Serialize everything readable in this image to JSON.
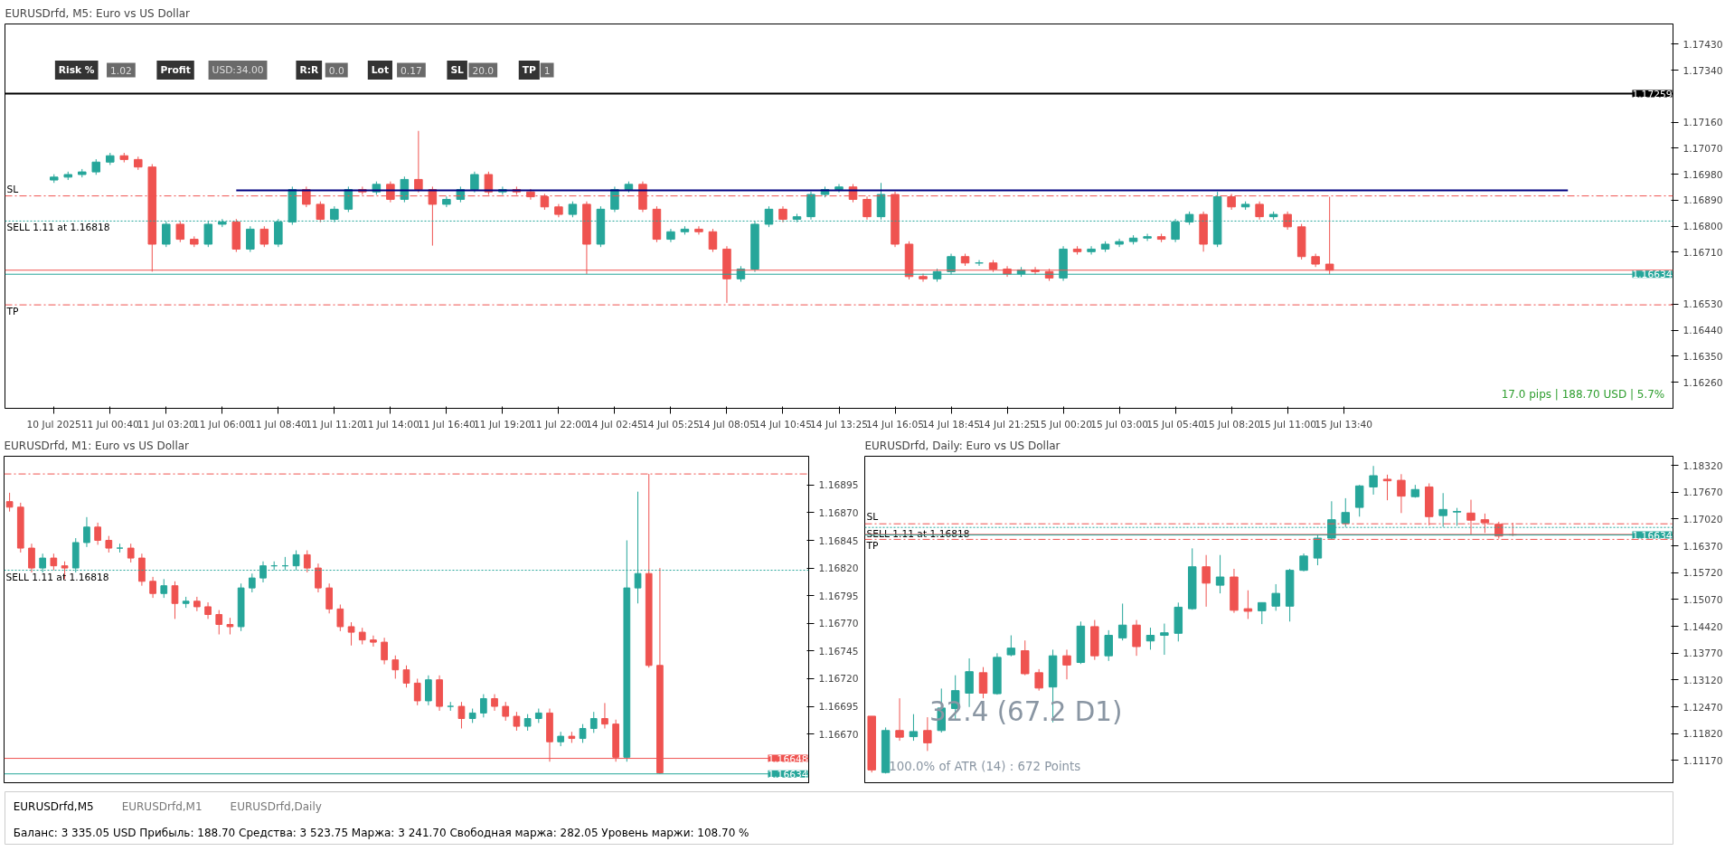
{
  "chart_data": [
    {
      "type": "candlestick",
      "title": "EURUSDrfd, M5:  Euro vs US Dollar",
      "categories": [
        null,
        null,
        null,
        "10 Jul 2025",
        null,
        null,
        null,
        "11 Jul 00:40",
        null,
        null,
        null,
        "11 Jul 03:20",
        null,
        null,
        null,
        "11 Jul 06:00",
        null,
        null,
        null,
        "11 Jul 08:40",
        null,
        null,
        null,
        "11 Jul 11:20",
        null,
        null,
        null,
        "11 Jul 14:00",
        null,
        null,
        null,
        "11 Jul 16:40",
        null,
        null,
        null,
        "11 Jul 19:20",
        null,
        null,
        null,
        "11 Jul 22:00",
        null,
        null,
        null,
        "14 Jul 02:45",
        null,
        null,
        null,
        "14 Jul 05:25",
        null,
        null,
        null,
        "14 Jul 08:05",
        null,
        null,
        null,
        "14 Jul 10:45",
        null,
        null,
        null,
        "14 Jul 13:25",
        null,
        null,
        null,
        "14 Jul 16:05",
        null,
        null,
        null,
        "14 Jul 18:45",
        null,
        null,
        null,
        "14 Jul 21:25",
        null,
        null,
        null,
        "15 Jul 00:20",
        null,
        null,
        null,
        "15 Jul 03:00",
        null,
        null,
        null,
        "15 Jul 05:40",
        null,
        null,
        null,
        "15 Jul 08:20",
        null,
        null,
        null,
        "15 Jul 11:00",
        null,
        null,
        null,
        "15 Jul 13:40",
        null,
        null,
        null,
        null,
        null,
        null,
        null,
        null,
        null,
        null,
        null,
        null,
        null,
        null,
        null,
        null,
        null,
        null,
        null,
        null,
        null,
        null,
        null
      ],
      "ohlc": [
        null,
        null,
        null,
        [
          1.1696,
          1.1698,
          1.1695,
          1.1697
        ],
        [
          1.1697,
          1.16989,
          1.1696,
          1.16979
        ],
        [
          1.16979,
          1.16998,
          1.16969,
          1.16988
        ],
        [
          1.16988,
          1.17032,
          1.16978,
          1.17022
        ],
        [
          1.17022,
          1.17054,
          1.17012,
          1.17044
        ],
        [
          1.17044,
          1.17054,
          1.17021,
          1.17031
        ],
        [
          1.17031,
          1.17041,
          1.16995,
          1.17005
        ],
        [
          1.17005,
          1.17015,
          1.16643,
          1.16738
        ],
        [
          1.16738,
          1.16817,
          1.16728,
          1.16807
        ],
        [
          1.16807,
          1.16817,
          1.16745,
          1.16755
        ],
        [
          1.16755,
          1.16765,
          1.16728,
          1.16738
        ],
        [
          1.16738,
          1.16817,
          1.16728,
          1.16807
        ],
        [
          1.16807,
          1.16825,
          1.16797,
          1.16815
        ],
        [
          1.16815,
          1.16825,
          1.16711,
          1.16721
        ],
        [
          1.16721,
          1.168,
          1.16711,
          1.1679
        ],
        [
          1.1679,
          1.168,
          1.16728,
          1.16738
        ],
        [
          1.16738,
          1.16825,
          1.16728,
          1.16815
        ],
        [
          1.16815,
          1.16937,
          1.16805,
          1.16927
        ],
        [
          1.16927,
          1.16937,
          1.16866,
          1.16876
        ],
        [
          1.16876,
          1.16886,
          1.16814,
          1.16824
        ],
        [
          1.16824,
          1.16869,
          1.16814,
          1.16859
        ],
        [
          1.16859,
          1.16937,
          1.16849,
          1.16927
        ],
        [
          1.16927,
          1.16937,
          1.16909,
          1.16919
        ],
        [
          1.16919,
          1.16955,
          1.16909,
          1.16945
        ],
        [
          1.16945,
          1.16955,
          1.16883,
          1.16893
        ],
        [
          1.16893,
          1.16972,
          1.16883,
          1.16962
        ],
        [
          1.16962,
          1.1713,
          1.16917,
          1.16927
        ],
        [
          1.16927,
          1.16937,
          1.16733,
          1.16876
        ],
        [
          1.16876,
          1.16903,
          1.16866,
          1.16893
        ],
        [
          1.16893,
          1.16937,
          1.16883,
          1.16927
        ],
        [
          1.16927,
          1.16989,
          1.16917,
          1.16979
        ],
        [
          1.16979,
          1.16989,
          1.16909,
          1.16919
        ],
        [
          1.16919,
          1.16937,
          1.16909,
          1.16927
        ],
        [
          1.16927,
          1.16937,
          1.16909,
          1.16919
        ],
        [
          1.16919,
          1.16929,
          1.16892,
          1.16902
        ],
        [
          1.16902,
          1.16912,
          1.16857,
          1.16867
        ],
        [
          1.16867,
          1.16877,
          1.16831,
          1.16841
        ],
        [
          1.16841,
          1.16886,
          1.16831,
          1.16876
        ],
        [
          1.16876,
          1.16886,
          1.16635,
          1.16738
        ],
        [
          1.16738,
          1.16869,
          1.16728,
          1.16859
        ],
        [
          1.16859,
          1.16937,
          1.16849,
          1.16927
        ],
        [
          1.16927,
          1.16955,
          1.16917,
          1.16945
        ],
        [
          1.16945,
          1.16955,
          1.16849,
          1.16859
        ],
        [
          1.16859,
          1.16869,
          1.16745,
          1.16755
        ],
        [
          1.16755,
          1.16791,
          1.16745,
          1.16781
        ],
        [
          1.16781,
          1.168,
          1.16771,
          1.1679
        ],
        [
          1.1679,
          1.168,
          1.16771,
          1.16781
        ],
        [
          1.16781,
          1.16791,
          1.16711,
          1.16721
        ],
        [
          1.16721,
          1.16731,
          1.16535,
          1.16618
        ],
        [
          1.16618,
          1.16662,
          1.16608,
          1.16652
        ],
        [
          1.16652,
          1.16817,
          1.16642,
          1.16807
        ],
        [
          1.16807,
          1.16869,
          1.16797,
          1.16859
        ],
        [
          1.16859,
          1.16869,
          1.16814,
          1.16824
        ],
        [
          1.16824,
          1.16843,
          1.16814,
          1.16833
        ],
        [
          1.16833,
          1.1692,
          1.16823,
          1.1691
        ],
        [
          1.1691,
          1.16937,
          1.169,
          1.16927
        ],
        [
          1.16927,
          1.16946,
          1.16917,
          1.16936
        ],
        [
          1.16936,
          1.16946,
          1.16883,
          1.16893
        ],
        [
          1.16893,
          1.16903,
          1.16823,
          1.16833
        ],
        [
          1.16833,
          1.1695,
          1.16823,
          1.1691
        ],
        [
          1.1691,
          1.1692,
          1.16728,
          1.16738
        ],
        [
          1.16738,
          1.16748,
          1.16616,
          1.16626
        ],
        [
          1.16626,
          1.16636,
          1.16608,
          1.16618
        ],
        [
          1.16618,
          1.16653,
          1.16608,
          1.16643
        ],
        [
          1.16643,
          1.16705,
          1.16633,
          1.16695
        ],
        [
          1.16695,
          1.16705,
          1.16663,
          1.16673
        ],
        [
          1.16673,
          1.16683,
          1.16663,
          1.16673
        ],
        [
          1.16673,
          1.16683,
          1.16642,
          1.16652
        ],
        [
          1.16652,
          1.16662,
          1.16625,
          1.16635
        ],
        [
          1.16635,
          1.16659,
          1.16625,
          1.16649
        ],
        [
          1.16649,
          1.16659,
          1.16633,
          1.16643
        ],
        [
          1.16643,
          1.16653,
          1.16611,
          1.16621
        ],
        [
          1.16621,
          1.16731,
          1.16611,
          1.16721
        ],
        [
          1.16721,
          1.16731,
          1.16702,
          1.16712
        ],
        [
          1.16712,
          1.16731,
          1.16702,
          1.16721
        ],
        [
          1.16721,
          1.16748,
          1.16711,
          1.16738
        ],
        [
          1.16738,
          1.16757,
          1.16728,
          1.16747
        ],
        [
          1.16747,
          1.16769,
          1.16737,
          1.16759
        ],
        [
          1.16759,
          1.16774,
          1.16749,
          1.16764
        ],
        [
          1.16764,
          1.16774,
          1.16745,
          1.16755
        ],
        [
          1.16755,
          1.16825,
          1.16745,
          1.16815
        ],
        [
          1.16815,
          1.16851,
          1.16805,
          1.16841
        ],
        [
          1.16841,
          1.16851,
          1.16712,
          1.16738
        ],
        [
          1.16738,
          1.16919,
          1.16728,
          1.16902
        ],
        [
          1.16902,
          1.16912,
          1.16857,
          1.16867
        ],
        [
          1.16867,
          1.16886,
          1.16857,
          1.16876
        ],
        [
          1.16876,
          1.16886,
          1.16823,
          1.16833
        ],
        [
          1.16833,
          1.16851,
          1.16823,
          1.16841
        ],
        [
          1.16841,
          1.16851,
          1.16788,
          1.16798
        ],
        [
          1.16798,
          1.16808,
          1.16685,
          1.16695
        ],
        [
          1.16695,
          1.16705,
          1.16659,
          1.16669
        ],
        [
          1.16669,
          1.16902,
          1.16634,
          1.16648
        ],
        null,
        null,
        null,
        null,
        null,
        null,
        null,
        null,
        null,
        null,
        null,
        null,
        null,
        null,
        null,
        null,
        null,
        null,
        null,
        null,
        null,
        null,
        null,
        null
      ],
      "series": [
        {
          "type": "line",
          "color": "#000080",
          "values": [
            null,
            null,
            null,
            null,
            null,
            null,
            null,
            null,
            null,
            null,
            null,
            null,
            null,
            null,
            null,
            null,
            1.16924,
            1.16924,
            1.16924,
            1.16924,
            1.16924,
            1.16924,
            1.16924,
            1.16924,
            1.16924,
            1.16924,
            1.16924,
            1.16924,
            1.16924,
            1.16924,
            1.16924,
            1.16924,
            1.16924,
            1.16924,
            1.16924,
            1.16924,
            1.16924,
            1.16924,
            1.16924,
            1.16924,
            1.16924,
            1.16924,
            1.16924,
            1.16924,
            1.16924,
            1.16924,
            1.16924,
            1.16924,
            1.16924,
            1.16924,
            1.16924,
            1.16924,
            1.16924,
            1.16924,
            1.16924,
            1.16924,
            1.16924,
            1.16924,
            1.16924,
            1.16924,
            1.16924,
            1.16924,
            1.16924,
            1.16924,
            1.16924,
            1.16924,
            1.16924,
            1.16924,
            1.16924,
            1.16924,
            1.16924,
            1.16924,
            1.16924,
            1.16924,
            1.16924,
            1.16924,
            1.16924,
            1.16924,
            1.16924,
            1.16924,
            1.16924,
            1.16924,
            1.16924,
            1.16924,
            1.16924,
            1.16924,
            1.16924,
            1.16924,
            1.16924,
            1.16924,
            1.16924,
            1.16924,
            1.16924,
            1.16924,
            1.16924,
            1.16924,
            1.16924,
            1.16924,
            1.16924,
            1.16924,
            1.16924,
            1.16924,
            1.16924,
            1.16924,
            1.16924,
            1.16924,
            1.16924,
            1.16924,
            1.16924,
            1.16924,
            1.16924,
            1.16924,
            null,
            null,
            null,
            null,
            null,
            null,
            null
          ]
        }
      ],
      "ylim": [
        1.1617,
        1.175
      ],
      "yticks": [
        {
          "value": 1.1626,
          "label": "1.16260"
        },
        {
          "value": 1.1635,
          "label": "1.16350"
        },
        {
          "value": 1.1644,
          "label": "1.16440"
        },
        {
          "value": 1.1653,
          "label": "1.16530"
        },
        {
          "value": 1.1671,
          "label": "1.16710"
        },
        {
          "value": 1.168,
          "label": "1.16800"
        },
        {
          "value": 1.1689,
          "label": "1.16890"
        },
        {
          "value": 1.1698,
          "label": "1.16980"
        },
        {
          "value": 1.1707,
          "label": "1.17070"
        },
        {
          "value": 1.1716,
          "label": "1.17160"
        },
        {
          "value": 1.1734,
          "label": "1.17340"
        },
        {
          "value": 1.1743,
          "label": "1.17430"
        }
      ],
      "ref_lines": [
        {
          "axis": "y",
          "value": 1.17259,
          "label": "1.17259",
          "color": "#000000",
          "line_style": "solid"
        },
        {
          "axis": "y",
          "value": 1.16905,
          "label": "SL",
          "color": "#ef5350",
          "line_style": "dashed"
        },
        {
          "axis": "y",
          "value": 1.16818,
          "label": "SELL 1.11 at 1.16818",
          "color": "#26a69a",
          "line_style": "dotted"
        },
        {
          "axis": "y",
          "value": 1.16648,
          "color": "#ef5350",
          "line_style": "solid"
        },
        {
          "axis": "y",
          "value": 1.16634,
          "label": "1.16634",
          "color": "#26a69a",
          "line_style": "solid"
        },
        {
          "axis": "y",
          "value": 1.16528,
          "label": "TP",
          "color": "#ef5350",
          "line_style": "dashed"
        }
      ],
      "annotations": [
        "17.0 pips | 188.70 USD | 5.7%",
        "Risk %",
        "1.02",
        "Profit",
        "USD:34.00",
        "R:R",
        "0.0",
        "Lot",
        "0.17",
        "SL",
        "20.0",
        "TP",
        "1"
      ]
    },
    {
      "type": "candlestick",
      "title": "EURUSDrfd, M1:  Euro vs US Dollar",
      "tick_labels": "y",
      "categories": [
        null,
        null,
        null,
        null,
        null,
        null,
        null,
        null,
        null,
        null,
        null,
        null,
        null,
        null,
        null,
        null,
        null,
        null,
        null,
        null,
        null,
        null,
        null,
        null,
        null,
        null,
        null,
        null,
        null,
        null,
        null,
        null,
        null,
        null,
        null,
        null,
        null,
        null,
        null,
        null,
        null,
        null,
        null,
        null,
        null,
        null,
        null,
        null,
        null,
        null,
        null,
        null,
        null,
        null,
        null,
        null,
        null,
        null,
        null,
        null,
        null,
        null,
        null,
        null,
        null,
        null,
        null,
        null,
        null,
        null,
        null,
        null,
        null
      ],
      "ohlc": [
        [
          1.1688,
          1.16888,
          1.16871,
          1.16875
        ],
        [
          1.16875,
          1.16879,
          1.16834,
          1.16838
        ],
        [
          1.16838,
          1.16842,
          1.16816,
          1.1682
        ],
        [
          1.1682,
          1.16833,
          1.16816,
          1.16829
        ],
        [
          1.16829,
          1.16833,
          1.16818,
          1.16822
        ],
        [
          1.16822,
          1.16826,
          1.1681,
          1.1682
        ],
        [
          1.1682,
          1.16847,
          1.16816,
          1.16843
        ],
        [
          1.16843,
          1.16866,
          1.16839,
          1.16857
        ],
        [
          1.16857,
          1.16861,
          1.16841,
          1.16845
        ],
        [
          1.16845,
          1.16849,
          1.16834,
          1.16838
        ],
        [
          1.16838,
          1.16842,
          1.16834,
          1.16838
        ],
        [
          1.16838,
          1.16842,
          1.16825,
          1.16829
        ],
        [
          1.16829,
          1.16833,
          1.16804,
          1.16808
        ],
        [
          1.16808,
          1.16812,
          1.16793,
          1.16797
        ],
        [
          1.16797,
          1.1681,
          1.16793,
          1.16804
        ],
        [
          1.16804,
          1.16808,
          1.16774,
          1.16788
        ],
        [
          1.16788,
          1.16794,
          1.16784,
          1.1679
        ],
        [
          1.1679,
          1.16794,
          1.16781,
          1.16785
        ],
        [
          1.16785,
          1.16789,
          1.16774,
          1.16778
        ],
        [
          1.16778,
          1.16782,
          1.1676,
          1.16769
        ],
        [
          1.16769,
          1.16775,
          1.1676,
          1.16767
        ],
        [
          1.16767,
          1.16806,
          1.16763,
          1.16802
        ],
        [
          1.16802,
          1.16815,
          1.16798,
          1.16811
        ],
        [
          1.16811,
          1.16826,
          1.16807,
          1.16822
        ],
        [
          1.16822,
          1.16826,
          1.16818,
          1.16822
        ],
        [
          1.16822,
          1.1683,
          1.16818,
          1.16822
        ],
        [
          1.16822,
          1.16836,
          1.16818,
          1.16832
        ],
        [
          1.16832,
          1.16836,
          1.16816,
          1.1682
        ],
        [
          1.1682,
          1.16824,
          1.16798,
          1.16802
        ],
        [
          1.16802,
          1.16806,
          1.16779,
          1.16783
        ],
        [
          1.16783,
          1.16787,
          1.16763,
          1.16767
        ],
        [
          1.16767,
          1.16771,
          1.1675,
          1.16762
        ],
        [
          1.16762,
          1.16766,
          1.16751,
          1.16755
        ],
        [
          1.16755,
          1.16759,
          1.16749,
          1.16753
        ],
        [
          1.16753,
          1.16757,
          1.16733,
          1.16737
        ],
        [
          1.16737,
          1.16741,
          1.1672,
          1.16728
        ],
        [
          1.16728,
          1.16732,
          1.16712,
          1.16716
        ],
        [
          1.16716,
          1.1672,
          1.16696,
          1.167
        ],
        [
          1.167,
          1.16723,
          1.16696,
          1.16719
        ],
        [
          1.16719,
          1.16723,
          1.16691,
          1.16695
        ],
        [
          1.16695,
          1.16699,
          1.16691,
          1.16695
        ],
        [
          1.16695,
          1.16699,
          1.16675,
          1.16684
        ],
        [
          1.16684,
          1.16693,
          1.1668,
          1.16689
        ],
        [
          1.16689,
          1.16706,
          1.16685,
          1.16702
        ],
        [
          1.16702,
          1.16706,
          1.16691,
          1.16695
        ],
        [
          1.16695,
          1.16699,
          1.16682,
          1.16686
        ],
        [
          1.16686,
          1.1669,
          1.16673,
          1.16677
        ],
        [
          1.16677,
          1.16688,
          1.16673,
          1.16684
        ],
        [
          1.16684,
          1.16693,
          1.1668,
          1.16689
        ],
        [
          1.16689,
          1.16693,
          1.16645,
          1.16663
        ],
        [
          1.16663,
          1.16672,
          1.16659,
          1.16668
        ],
        [
          1.16668,
          1.16672,
          1.16662,
          1.16666
        ],
        [
          1.16666,
          1.16679,
          1.16662,
          1.16675
        ],
        [
          1.16675,
          1.1669,
          1.16671,
          1.16684
        ],
        [
          1.16684,
          1.16698,
          1.16675,
          1.16679
        ],
        [
          1.16679,
          1.16683,
          1.16645,
          1.16649
        ],
        [
          1.16649,
          1.16845,
          1.16645,
          1.16802
        ],
        [
          1.16802,
          1.16889,
          1.16788,
          1.16815
        ],
        [
          1.16815,
          1.16905,
          1.1673,
          1.16732
        ],
        [
          1.16732,
          1.1682,
          1.16634,
          1.16635
        ],
        null,
        null,
        null,
        null,
        null,
        null,
        null,
        null,
        null,
        null,
        null,
        null,
        null
      ],
      "ylim": [
        1.16626,
        1.16921
      ],
      "yticks": [
        {
          "value": 1.1667,
          "label": "1.16670"
        },
        {
          "value": 1.16695,
          "label": "1.16695"
        },
        {
          "value": 1.1672,
          "label": "1.16720"
        },
        {
          "value": 1.16745,
          "label": "1.16745"
        },
        {
          "value": 1.1677,
          "label": "1.16770"
        },
        {
          "value": 1.16795,
          "label": "1.16795"
        },
        {
          "value": 1.1682,
          "label": "1.16820"
        },
        {
          "value": 1.16845,
          "label": "1.16845"
        },
        {
          "value": 1.1687,
          "label": "1.16870"
        },
        {
          "value": 1.16895,
          "label": "1.16895"
        }
      ],
      "ref_lines": [
        {
          "axis": "y",
          "value": 1.16905,
          "color": "#ef5350",
          "line_style": "dashed"
        },
        {
          "axis": "y",
          "value": 1.16818,
          "label": "SELL 1.11 at 1.16818",
          "color": "#26a69a",
          "line_style": "dotted"
        },
        {
          "axis": "y",
          "value": 1.16648,
          "label": "1.16648",
          "color": "#ef5350",
          "line_style": "solid"
        },
        {
          "axis": "y",
          "value": 1.16634,
          "label": "1.16634",
          "color": "#26a69a",
          "line_style": "solid"
        }
      ]
    },
    {
      "type": "candlestick",
      "title": "EURUSDrfd, Daily:  Euro vs US Dollar",
      "tick_labels": "y",
      "categories": [
        null,
        null,
        null,
        null,
        null,
        null,
        null,
        null,
        null,
        null,
        null,
        null,
        null,
        null,
        null,
        null,
        null,
        null,
        null,
        null,
        null,
        null,
        null,
        null,
        null,
        null,
        null,
        null,
        null,
        null,
        null,
        null,
        null,
        null,
        null,
        null,
        null,
        null,
        null,
        null,
        null,
        null,
        null,
        null,
        null,
        null,
        null,
        null,
        null,
        null,
        null,
        null,
        null,
        null,
        null,
        null,
        null,
        null
      ],
      "ohlc": [
        [
          1.12242,
          1.12242,
          1.10877,
          1.10939
        ],
        [
          1.10877,
          1.11969,
          1.10852,
          1.11894
        ],
        [
          1.11894,
          1.12676,
          1.11646,
          1.11733
        ],
        [
          1.11745,
          1.12291,
          1.11646,
          1.11869
        ],
        [
          1.11894,
          1.12217,
          1.11398,
          1.11596
        ],
        [
          1.11894,
          1.12911,
          1.11845,
          1.1244
        ],
        [
          1.12428,
          1.13234,
          1.12167,
          1.12862
        ],
        [
          1.128,
          1.13643,
          1.12465,
          1.13321
        ],
        [
          1.13296,
          1.13432,
          1.12676,
          1.128
        ],
        [
          1.12787,
          1.13767,
          1.12763,
          1.13668
        ],
        [
          1.1373,
          1.14202,
          1.13693,
          1.13891
        ],
        [
          1.13829,
          1.14077,
          1.13234,
          1.13271
        ],
        [
          1.13296,
          1.13383,
          1.12862,
          1.12924
        ],
        [
          1.12949,
          1.13854,
          1.12093,
          1.13705
        ],
        [
          1.13705,
          1.13854,
          1.13135,
          1.13482
        ],
        [
          1.13544,
          1.14536,
          1.13507,
          1.14425
        ],
        [
          1.14412,
          1.14574,
          1.13606,
          1.13705
        ],
        [
          1.13705,
          1.14326,
          1.13581,
          1.14202
        ],
        [
          1.1414,
          1.14971,
          1.14077,
          1.1445
        ],
        [
          1.1445,
          1.14574,
          1.13705,
          1.13929
        ],
        [
          1.14065,
          1.14388,
          1.13854,
          1.14202
        ],
        [
          1.14202,
          1.14487,
          1.1373,
          1.14264
        ],
        [
          1.14251,
          1.14995,
          1.14053,
          1.14884
        ],
        [
          1.14847,
          1.1631,
          1.14822,
          1.15864
        ],
        [
          1.15864,
          1.16149,
          1.14896,
          1.15467
        ],
        [
          1.15417,
          1.16149,
          1.15219,
          1.15616
        ],
        [
          1.15616,
          1.15814,
          1.14747,
          1.14809
        ],
        [
          1.14847,
          1.15293,
          1.14598,
          1.14785
        ],
        [
          1.14797,
          1.14995,
          1.14474,
          1.14995
        ],
        [
          1.14909,
          1.15442,
          1.14797,
          1.15219
        ],
        [
          1.14909,
          1.15814,
          1.14536,
          1.15777
        ],
        [
          1.15777,
          1.16186,
          1.15752,
          1.16124
        ],
        [
          1.16075,
          1.16645,
          1.15901,
          1.16558
        ],
        [
          1.16558,
          1.17452,
          1.16534,
          1.17005
        ],
        [
          1.16918,
          1.17526,
          1.16831,
          1.17179
        ],
        [
          1.17303,
          1.17849,
          1.17079,
          1.17824
        ],
        [
          1.17799,
          1.18308,
          1.17613,
          1.18072
        ],
        [
          1.17985,
          1.18097,
          1.17476,
          1.17948
        ],
        [
          1.1796,
          1.18109,
          1.17166,
          1.17576
        ],
        [
          1.17563,
          1.17849,
          1.17538,
          1.17737
        ],
        [
          1.17799,
          1.17886,
          1.16869,
          1.17079
        ],
        [
          1.17104,
          1.1765,
          1.16831,
          1.17253
        ],
        [
          1.17191,
          1.1729,
          1.16856,
          1.17204
        ],
        [
          1.17166,
          1.17489,
          1.16645,
          1.16993
        ],
        [
          1.17005,
          1.17154,
          1.16683,
          1.16931
        ],
        [
          1.16893,
          1.16955,
          1.16546,
          1.16608
        ],
        [
          1.1664,
          1.16931,
          1.16608,
          1.16634
        ],
        null,
        null,
        null,
        null,
        null,
        null,
        null,
        null,
        null,
        null,
        null
      ],
      "ylim": [
        1.10629,
        1.18543
      ],
      "yticks": [
        {
          "value": 1.1117,
          "label": "1.11170"
        },
        {
          "value": 1.1182,
          "label": "1.11820"
        },
        {
          "value": 1.1247,
          "label": "1.12470"
        },
        {
          "value": 1.1312,
          "label": "1.13120"
        },
        {
          "value": 1.1377,
          "label": "1.13770"
        },
        {
          "value": 1.1442,
          "label": "1.14420"
        },
        {
          "value": 1.1507,
          "label": "1.15070"
        },
        {
          "value": 1.1572,
          "label": "1.15720"
        },
        {
          "value": 1.1637,
          "label": "1.16370"
        },
        {
          "value": 1.1702,
          "label": "1.17020"
        },
        {
          "value": 1.1767,
          "label": "1.17670"
        },
        {
          "value": 1.1832,
          "label": "1.18320"
        }
      ],
      "ref_lines": [
        {
          "axis": "y",
          "value": 1.16905,
          "label": "SL",
          "color": "#ef5350",
          "line_style": "dashed"
        },
        {
          "axis": "y",
          "value": 1.16818,
          "label": "SELL 1.11 at 1.16818",
          "color": "#26a69a",
          "line_style": "dotted"
        },
        {
          "axis": "y",
          "value": 1.16648,
          "color": "#ef5350",
          "line_style": "solid"
        },
        {
          "axis": "y",
          "value": 1.16634,
          "label": "1.16634",
          "color": "#26a69a",
          "line_style": "solid"
        },
        {
          "axis": "y",
          "value": 1.16528,
          "label": "TP",
          "color": "#ef5350",
          "line_style": "dashed"
        }
      ],
      "annotations": [
        "32.4 (67.2 D1)",
        "100.0% of ATR (14) : 672 Points"
      ]
    },
    {
      "type": "other",
      "annotations": [
        "EURUSDrfd,M5",
        "EURUSDrfd,M1",
        "EURUSDrfd,Daily",
        "Баланс: 3 335.05 USD  Прибыль: 188.70  Средства: 3 523.75  Маржа: 3 241.70  Свободная маржа: 282.05  Уровень маржи: 108.70 %"
      ]
    }
  ]
}
